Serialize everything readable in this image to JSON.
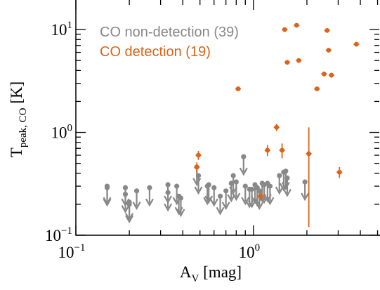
{
  "chart_data": {
    "type": "scatter",
    "x_scale": "log",
    "y_scale": "log",
    "xlim": [
      0.1,
      5.5
    ],
    "ylim": [
      0.1,
      20
    ],
    "x_ticks": [
      {
        "value": 0.1,
        "base": "10",
        "exp": "−1"
      },
      {
        "value": 1,
        "base": "10",
        "exp": "0"
      }
    ],
    "y_ticks": [
      {
        "value": 0.1,
        "base": "10",
        "exp": "−1"
      },
      {
        "value": 1,
        "base": "10",
        "exp": "0"
      },
      {
        "value": 10,
        "base": "10",
        "exp": "1"
      }
    ],
    "xlabel": {
      "main": "A",
      "sub": "V",
      "unit": " [mag]"
    },
    "ylabel": {
      "main": "T",
      "sub": "peak, CO",
      "unit": " [K]"
    },
    "legend_position": "top-left",
    "series": [
      {
        "name": "CO non-detection (39)",
        "color": "#888888",
        "kind": "upper_limit",
        "points": [
          [
            0.15,
            0.3
          ],
          [
            0.15,
            0.29
          ],
          [
            0.19,
            0.29
          ],
          [
            0.19,
            0.25
          ],
          [
            0.2,
            0.21
          ],
          [
            0.2,
            0.2
          ],
          [
            0.22,
            0.27
          ],
          [
            0.26,
            0.29
          ],
          [
            0.33,
            0.31
          ],
          [
            0.33,
            0.26
          ],
          [
            0.37,
            0.3
          ],
          [
            0.38,
            0.24
          ],
          [
            0.39,
            0.23
          ],
          [
            0.48,
            0.46
          ],
          [
            0.49,
            0.38
          ],
          [
            0.55,
            0.3
          ],
          [
            0.56,
            0.31
          ],
          [
            0.6,
            0.29
          ],
          [
            0.65,
            0.24
          ],
          [
            0.7,
            0.27
          ],
          [
            0.75,
            0.32
          ],
          [
            0.77,
            0.38
          ],
          [
            0.8,
            0.33
          ],
          [
            0.88,
            0.58
          ],
          [
            0.9,
            0.3
          ],
          [
            0.95,
            0.28
          ],
          [
            0.98,
            0.28
          ],
          [
            1.02,
            0.31
          ],
          [
            1.05,
            0.29
          ],
          [
            1.08,
            0.27
          ],
          [
            1.12,
            0.32
          ],
          [
            1.15,
            0.31
          ],
          [
            1.2,
            0.32
          ],
          [
            1.24,
            0.3
          ],
          [
            1.4,
            0.38
          ],
          [
            1.48,
            0.41
          ],
          [
            1.52,
            0.42
          ],
          [
            1.55,
            0.36
          ],
          [
            1.95,
            0.33
          ]
        ]
      },
      {
        "name": "CO detection (19)",
        "color": "#d9651a",
        "kind": "detection",
        "points": [
          [
            1.5,
            10.0,
            0.45
          ],
          [
            1.75,
            11.0,
            0.5
          ],
          [
            2.6,
            9.8,
            0.4
          ],
          [
            3.8,
            7.2,
            0.3
          ],
          [
            1.55,
            4.8,
            0.25
          ],
          [
            1.8,
            5.0,
            0.25
          ],
          [
            2.65,
            6.3,
            0.3
          ],
          [
            2.5,
            3.7,
            0.2
          ],
          [
            2.75,
            3.6,
            0.2
          ],
          [
            0.82,
            2.65,
            0.12
          ],
          [
            2.28,
            2.65,
            0.12
          ],
          [
            1.35,
            1.12,
            0.09
          ],
          [
            1.2,
            0.67,
            0.08
          ],
          [
            1.45,
            0.67,
            0.11
          ],
          [
            0.49,
            0.6,
            0.06
          ],
          [
            0.48,
            0.46,
            0.05
          ],
          [
            2.05,
            0.62,
            0.5
          ],
          [
            3.05,
            0.41,
            0.05
          ],
          [
            1.1,
            0.24,
            0.02
          ]
        ]
      }
    ]
  },
  "colors": {
    "non_detection": "#888888",
    "detection": "#d9651a",
    "axis": "#000000"
  }
}
